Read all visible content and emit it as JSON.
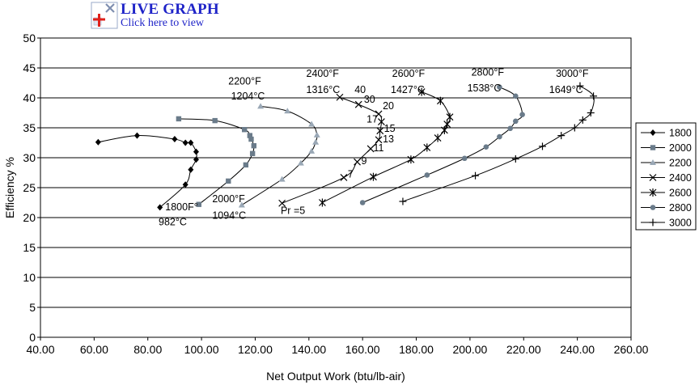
{
  "live_graph": {
    "title": "LIVE GRAPH",
    "subtitle": "Click here to view"
  },
  "chart_data": {
    "type": "scatter",
    "xlabel": "Net Output Work (btu/lb-air)",
    "ylabel": "Efficiency %",
    "xlim": [
      40,
      260
    ],
    "ylim": [
      0,
      50
    ],
    "x_ticks": [
      "40.00",
      "60.00",
      "80.00",
      "100.00",
      "120.00",
      "140.00",
      "160.00",
      "180.00",
      "200.00",
      "220.00",
      "240.00",
      "260.00"
    ],
    "y_ticks": [
      "0",
      "5",
      "10",
      "15",
      "20",
      "25",
      "30",
      "35",
      "40",
      "45",
      "50"
    ],
    "grid": "horizontal",
    "legend": "right",
    "series": [
      {
        "name": "1800",
        "marker": "diamond",
        "color": "#000000",
        "points": [
          [
            84.5,
            21.7
          ],
          [
            94,
            25.5
          ],
          [
            96,
            28
          ],
          [
            98,
            29.7
          ],
          [
            98,
            31
          ],
          [
            96,
            32.5
          ],
          [
            94,
            32.5
          ],
          [
            90,
            33.1
          ],
          [
            76,
            33.7
          ],
          [
            61.5,
            32.6
          ]
        ]
      },
      {
        "name": "2000",
        "marker": "square",
        "color": "#6a7b8a",
        "points": [
          [
            99,
            22.2
          ],
          [
            110,
            26.1
          ],
          [
            116.5,
            28.8
          ],
          [
            119,
            30.7
          ],
          [
            119.5,
            32
          ],
          [
            118.5,
            33.1
          ],
          [
            118,
            33.7
          ],
          [
            116,
            34.7
          ],
          [
            105,
            36.2
          ],
          [
            91.5,
            36.5
          ]
        ]
      },
      {
        "name": "2200",
        "marker": "triangle",
        "color": "#9aa8b6",
        "points": [
          [
            115,
            22.1
          ],
          [
            130,
            26.4
          ],
          [
            137,
            29.1
          ],
          [
            141,
            31.1
          ],
          [
            142.5,
            32.6
          ],
          [
            143,
            33.8
          ],
          [
            141,
            35.6
          ],
          [
            132,
            37.8
          ],
          [
            122,
            38.6
          ]
        ]
      },
      {
        "name": "2400",
        "marker": "x",
        "color": "#000000",
        "points": [
          [
            130,
            22.4
          ],
          [
            153,
            26.7
          ],
          [
            158,
            29.3
          ],
          [
            163,
            31.5
          ],
          [
            166,
            33
          ],
          [
            166.5,
            34.5
          ],
          [
            167,
            36
          ],
          [
            166,
            37.3
          ],
          [
            158.5,
            38.9
          ],
          [
            151.5,
            40.1
          ]
        ]
      },
      {
        "name": "2600",
        "marker": "asterisk",
        "color": "#000000",
        "points": [
          [
            145,
            22.5
          ],
          [
            164,
            26.8
          ],
          [
            178,
            29.7
          ],
          [
            184,
            31.7
          ],
          [
            188,
            33.3
          ],
          [
            190.5,
            34.6
          ],
          [
            191.5,
            35.6
          ],
          [
            192.5,
            36.8
          ],
          [
            189,
            39.5
          ],
          [
            182,
            41
          ]
        ]
      },
      {
        "name": "2800",
        "marker": "circle",
        "color": "#6a7b8a",
        "points": [
          [
            160,
            22.5
          ],
          [
            184,
            27.1
          ],
          [
            198,
            29.9
          ],
          [
            206,
            31.8
          ],
          [
            211,
            33.5
          ],
          [
            215,
            34.9
          ],
          [
            217,
            36.1
          ],
          [
            219.5,
            37.2
          ],
          [
            217,
            40.3
          ],
          [
            211,
            41.8
          ]
        ]
      },
      {
        "name": "3000",
        "marker": "plus",
        "color": "#000000",
        "points": [
          [
            175,
            22.7
          ],
          [
            202,
            27
          ],
          [
            217,
            29.8
          ],
          [
            227,
            31.9
          ],
          [
            234,
            33.7
          ],
          [
            239,
            35
          ],
          [
            242,
            36.3
          ],
          [
            245,
            37.5
          ],
          [
            246,
            40.3
          ],
          [
            241,
            42
          ]
        ]
      }
    ],
    "annotations": [
      {
        "text": "1800F°",
        "x": 86.5,
        "y": 21.2
      },
      {
        "text": "982°C",
        "x": 84,
        "y": 18.7
      },
      {
        "text": "2000°F",
        "x": 104,
        "y": 22.6
      },
      {
        "text": "1094°C",
        "x": 104,
        "y": 19.8
      },
      {
        "text": "2200°F",
        "x": 110,
        "y": 42.2
      },
      {
        "text": "1204°C",
        "x": 111,
        "y": 39.7
      },
      {
        "text": "2400°F",
        "x": 139,
        "y": 43.5
      },
      {
        "text": "1316°C",
        "x": 139,
        "y": 40.8
      },
      {
        "text": "2600°F",
        "x": 171,
        "y": 43.5
      },
      {
        "text": "1427°C",
        "x": 170.5,
        "y": 40.8
      },
      {
        "text": "2800°F",
        "x": 200.5,
        "y": 43.7
      },
      {
        "text": "1538°C",
        "x": 199,
        "y": 41.1
      },
      {
        "text": "3000°F",
        "x": 232,
        "y": 43.5
      },
      {
        "text": "1649°C",
        "x": 229.5,
        "y": 40.8
      },
      {
        "text": "Pr =5",
        "x": 129.5,
        "y": 20.6
      },
      {
        "text": "7",
        "x": 154.5,
        "y": 26.7
      },
      {
        "text": "9",
        "x": 159.5,
        "y": 28.9
      },
      {
        "text": "11",
        "x": 164,
        "y": 31.1
      },
      {
        "text": "13",
        "x": 167.5,
        "y": 32.6
      },
      {
        "text": "15",
        "x": 168,
        "y": 34.3
      },
      {
        "text": "17",
        "x": 161.5,
        "y": 35.9
      },
      {
        "text": "20",
        "x": 167.5,
        "y": 38.1
      },
      {
        "text": "30",
        "x": 160.5,
        "y": 39.2
      },
      {
        "text": "40",
        "x": 157,
        "y": 40.8
      }
    ]
  }
}
